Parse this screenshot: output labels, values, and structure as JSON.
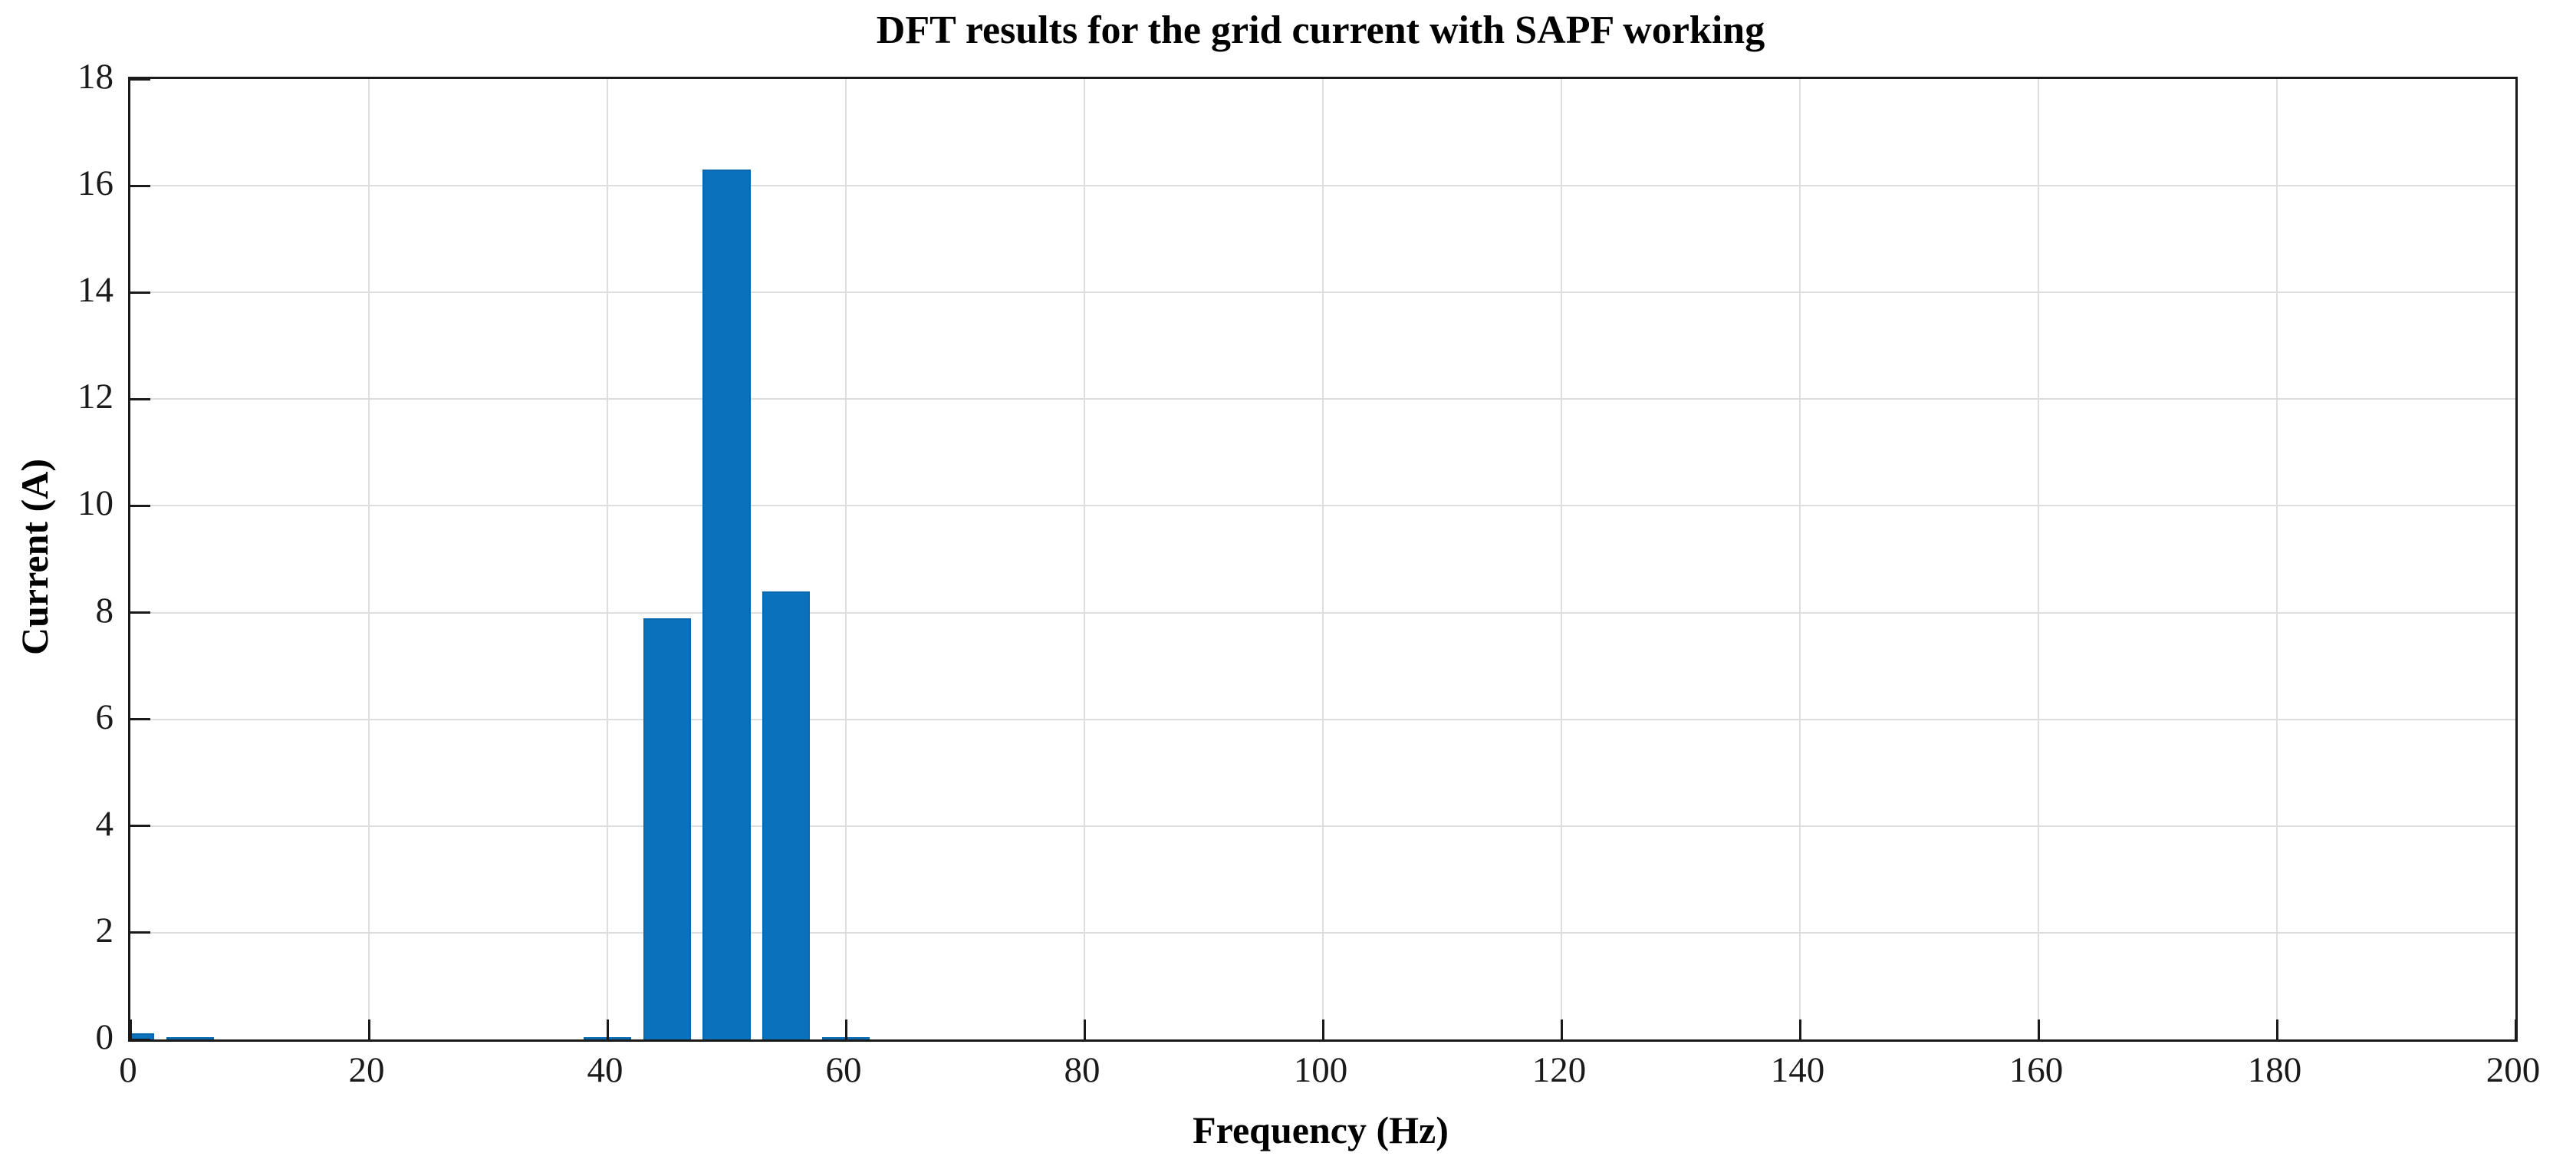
{
  "chart_data": {
    "type": "bar",
    "title": "DFT results for the grid current with SAPF working",
    "xlabel": "Frequency (Hz)",
    "ylabel": "Current (A)",
    "x": [
      0,
      5,
      40,
      45,
      50,
      55,
      60
    ],
    "values": [
      0.12,
      0.05,
      0.04,
      7.9,
      16.3,
      8.4,
      0.05
    ],
    "bar_width_x": 4,
    "xlim": [
      0,
      200
    ],
    "ylim": [
      0,
      18
    ],
    "xticks": [
      0,
      20,
      40,
      60,
      80,
      100,
      120,
      140,
      160,
      180,
      200
    ],
    "yticks": [
      0,
      2,
      4,
      6,
      8,
      10,
      12,
      14,
      16,
      18
    ],
    "grid": true,
    "legend_position": "none",
    "bar_color": "#0a72bd",
    "grid_color": "#dedede",
    "axis_color": "#1a1a1a",
    "background_color": "#ffffff"
  }
}
